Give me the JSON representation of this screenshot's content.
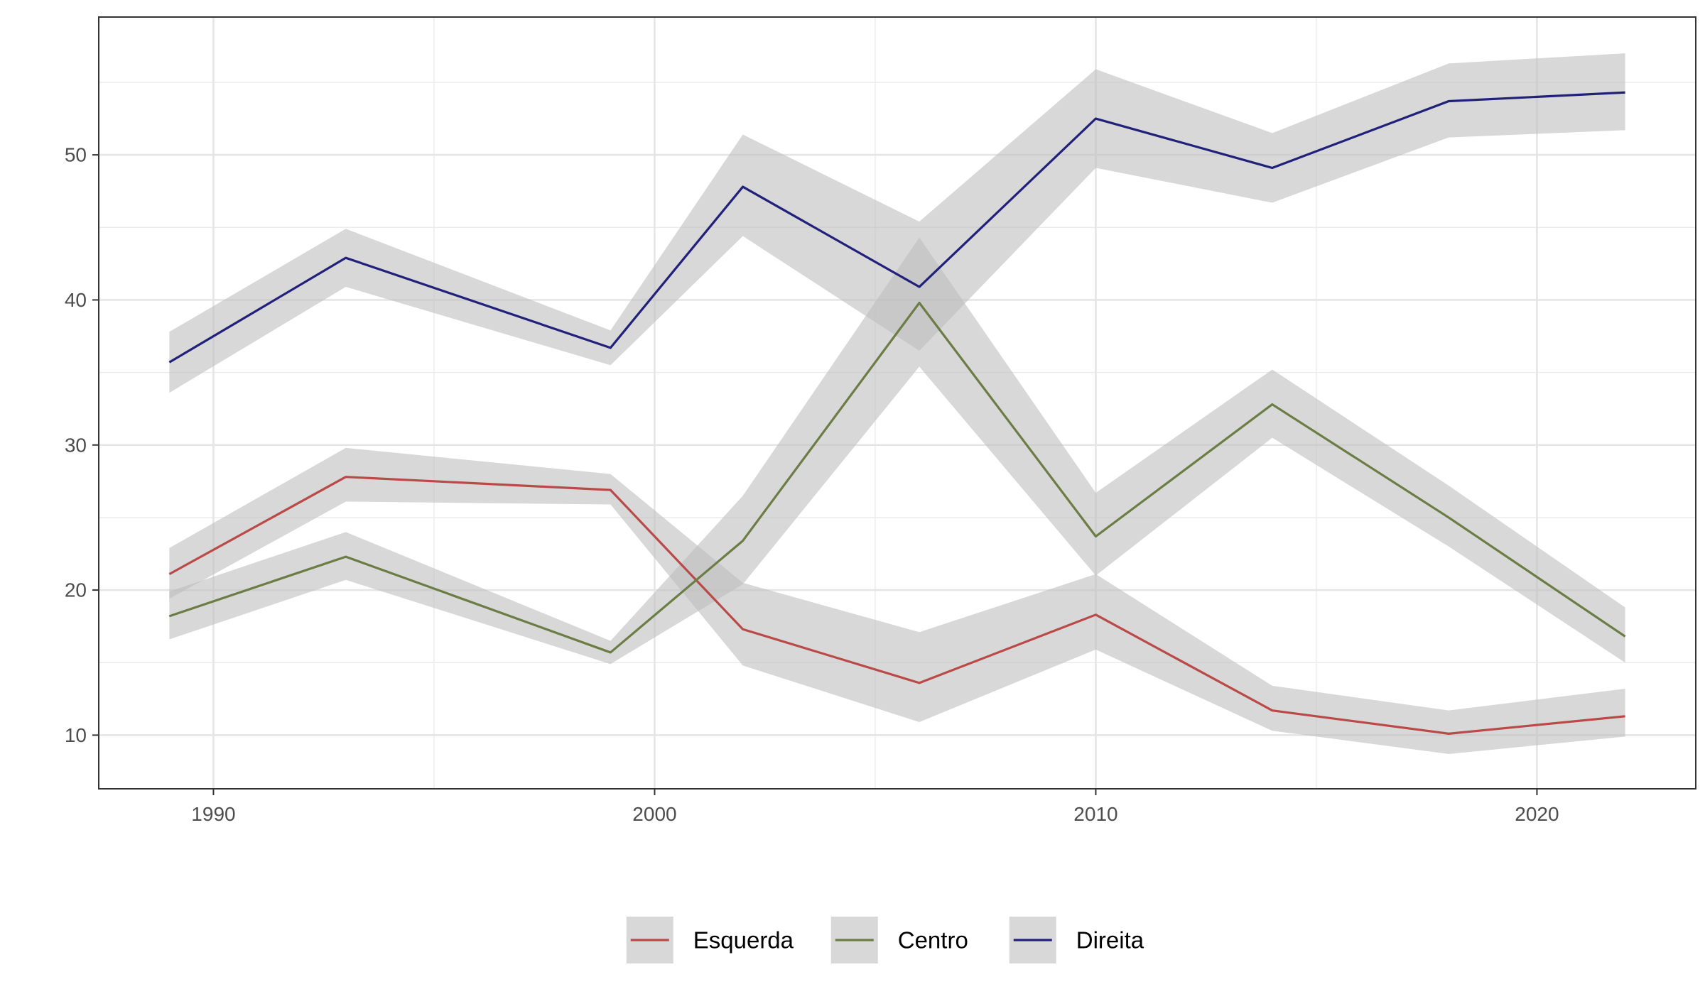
{
  "chart_data": {
    "type": "line",
    "title": "",
    "xlabel": "",
    "ylabel": "",
    "x": [
      1989,
      1993,
      1999,
      2002,
      2006,
      2010,
      2014,
      2018,
      2022
    ],
    "xlim": [
      1987.4,
      2023.6
    ],
    "ylim": [
      6.3,
      59.5
    ],
    "x_ticks": [
      1990,
      2000,
      2010,
      2020
    ],
    "y_ticks": [
      10,
      20,
      30,
      40,
      50
    ],
    "x_tick_labels": [
      "1990",
      "2000",
      "2010",
      "2020"
    ],
    "y_tick_labels": [
      "10",
      "20",
      "30",
      "40",
      "50"
    ],
    "grid": true,
    "legend_position": "bottom",
    "band_color": "#bebebe",
    "series": [
      {
        "name": "Esquerda",
        "color": "#b94a48",
        "values": [
          21.1,
          27.8,
          26.9,
          17.3,
          13.6,
          18.3,
          11.7,
          10.1,
          11.3
        ],
        "lower": [
          19.4,
          26.1,
          25.9,
          14.8,
          10.9,
          15.9,
          10.3,
          8.7,
          9.9
        ],
        "upper": [
          22.9,
          29.8,
          28.0,
          20.5,
          17.1,
          21.1,
          13.4,
          11.7,
          13.2
        ]
      },
      {
        "name": "Centro",
        "color": "#6b7d45",
        "values": [
          18.2,
          22.3,
          15.7,
          23.4,
          39.8,
          23.7,
          32.8,
          25.0,
          16.8
        ],
        "lower": [
          16.6,
          20.7,
          14.9,
          20.4,
          35.4,
          21.0,
          30.5,
          23.0,
          15.0
        ],
        "upper": [
          19.9,
          24.0,
          16.5,
          26.5,
          44.3,
          26.7,
          35.2,
          27.2,
          18.8
        ]
      },
      {
        "name": "Direita",
        "color": "#21207a",
        "values": [
          35.7,
          42.9,
          36.7,
          47.8,
          40.9,
          52.5,
          49.1,
          53.7,
          54.3
        ],
        "lower": [
          33.6,
          40.9,
          35.5,
          44.4,
          36.5,
          49.1,
          46.7,
          51.2,
          51.7
        ],
        "upper": [
          37.8,
          44.9,
          37.9,
          51.4,
          45.4,
          55.9,
          51.5,
          56.3,
          57.0
        ]
      }
    ]
  }
}
